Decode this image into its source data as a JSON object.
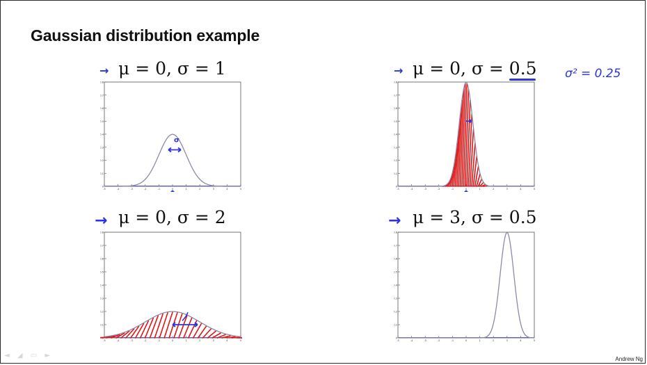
{
  "slide": {
    "title": "Gaussian distribution example",
    "credit": "Andrew Ng",
    "nav_glyphs": "◄ ◢ ▭ ►"
  },
  "annotations": {
    "variance_note": "σ² = 0.25",
    "arrow_glyph": "→"
  },
  "colors": {
    "curve": "#8a8aa8",
    "ink": "#2b35d9",
    "hatch": "#e21414",
    "axis": "#333333"
  },
  "chart_data": [
    {
      "type": "line",
      "title": "μ = 0, σ = 1",
      "mu": 0,
      "sigma": 1,
      "xlim": [
        -5,
        5
      ],
      "ylim": [
        0,
        0.8
      ],
      "xticks": [
        -5,
        -4,
        -3,
        -2,
        -1,
        0,
        1,
        2,
        3,
        4,
        5
      ],
      "yticks": [
        0,
        0.1,
        0.2,
        0.3,
        0.4,
        0.5,
        0.6,
        0.7,
        0.8
      ],
      "ink": "sigma-arrow",
      "hatch": false,
      "peak": 0.399
    },
    {
      "type": "line",
      "title": "μ = 0, σ = 0.5",
      "mu": 0,
      "sigma": 0.5,
      "xlim": [
        -5,
        5
      ],
      "ylim": [
        0,
        0.8
      ],
      "xticks": [
        -5,
        -4,
        -3,
        -2,
        -1,
        0,
        1,
        2,
        3,
        4,
        5
      ],
      "yticks": [
        0,
        0.1,
        0.2,
        0.3,
        0.4,
        0.5,
        0.6,
        0.7,
        0.8
      ],
      "ink": "small-arrow",
      "hatch": true,
      "peak": 0.798
    },
    {
      "type": "line",
      "title": "μ = 0, σ = 2",
      "mu": 0,
      "sigma": 2,
      "xlim": [
        -5,
        5
      ],
      "ylim": [
        0,
        0.8
      ],
      "xticks": [
        -5,
        -4,
        -3,
        -2,
        -1,
        0,
        1,
        2,
        3,
        4,
        5
      ],
      "yticks": [
        0,
        0.1,
        0.2,
        0.3,
        0.4,
        0.5,
        0.6,
        0.7,
        0.8
      ],
      "ink": "wide-arrow",
      "hatch": true,
      "peak": 0.199
    },
    {
      "type": "line",
      "title": "μ = 3, σ = 0.5",
      "mu": 3,
      "sigma": 0.5,
      "xlim": [
        -5,
        5
      ],
      "ylim": [
        0,
        0.8
      ],
      "xticks": [
        -5,
        -4,
        -3,
        -2,
        -1,
        0,
        1,
        2,
        3,
        4,
        5
      ],
      "yticks": [
        0,
        0.1,
        0.2,
        0.3,
        0.4,
        0.5,
        0.6,
        0.7,
        0.8
      ],
      "ink": "none",
      "hatch": false,
      "peak": 0.798
    }
  ]
}
